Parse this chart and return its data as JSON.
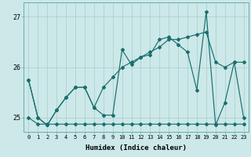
{
  "xlabel": "Humidex (Indice chaleur)",
  "ylabel": "",
  "background_color": "#cce8e8",
  "grid_color": "#aacccc",
  "line_color": "#1a6e6e",
  "xlim": [
    -0.5,
    23.5
  ],
  "ylim": [
    24.72,
    27.28
  ],
  "yticks": [
    25,
    26,
    27
  ],
  "xticks": [
    0,
    1,
    2,
    3,
    4,
    5,
    6,
    7,
    8,
    9,
    10,
    11,
    12,
    13,
    14,
    15,
    16,
    17,
    18,
    19,
    20,
    21,
    22,
    23
  ],
  "series_main": [
    25.75,
    25.0,
    24.85,
    25.15,
    25.4,
    25.6,
    25.6,
    25.2,
    25.05,
    25.05,
    26.35,
    26.05,
    26.2,
    26.25,
    26.55,
    26.6,
    26.45,
    26.3,
    25.55,
    27.1,
    24.85,
    25.3,
    26.1,
    25.0
  ],
  "series_upper": [
    25.75,
    25.0,
    24.85,
    25.15,
    25.4,
    25.6,
    25.6,
    25.2,
    25.6,
    25.8,
    26.0,
    26.1,
    26.2,
    26.3,
    26.4,
    26.55,
    26.55,
    26.6,
    26.65,
    26.7,
    26.1,
    26.0,
    26.1,
    26.1
  ],
  "series_lower": [
    25.0,
    24.87,
    24.87,
    24.87,
    24.87,
    24.87,
    24.87,
    24.87,
    24.87,
    24.87,
    24.87,
    24.87,
    24.87,
    24.87,
    24.87,
    24.87,
    24.87,
    24.87,
    24.87,
    24.87,
    24.87,
    24.87,
    24.87,
    24.87
  ]
}
